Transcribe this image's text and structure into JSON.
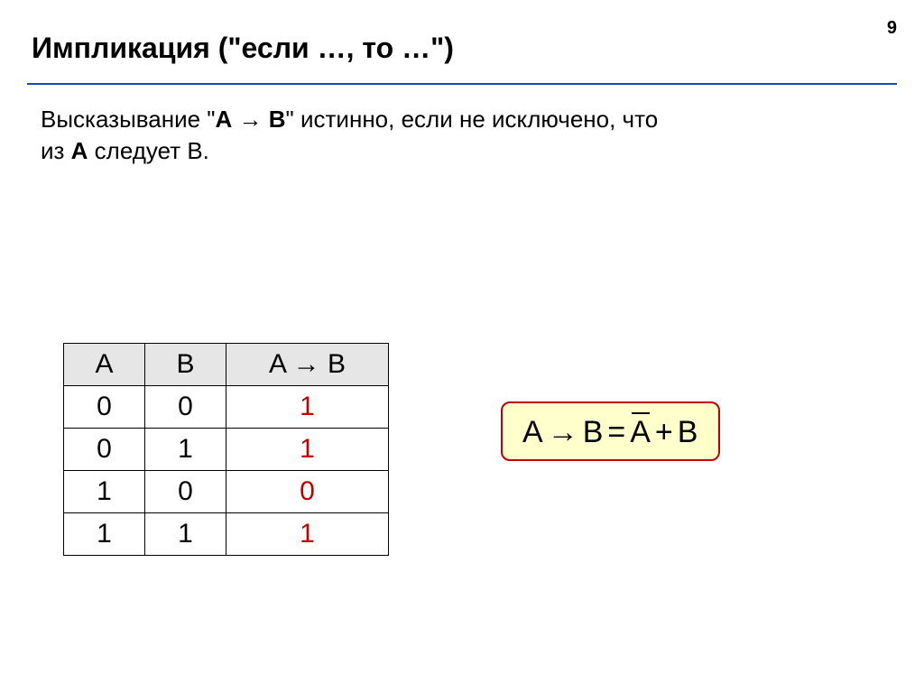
{
  "page_number": "9",
  "title": "Импликация (\"если …, то …\")",
  "statement_parts": {
    "t1": "Высказывание \"",
    "t2": "A",
    "t3": " → ",
    "t4": "B",
    "t5": "\" истинно, если не исключено, что из ",
    "t6": "A",
    "t7": " следует B."
  },
  "table": {
    "headers": {
      "a": "A",
      "b": "B",
      "ab_left": "A",
      "ab_arrow": " → ",
      "ab_right": "B"
    },
    "rows": [
      {
        "a": "0",
        "b": "0",
        "res": "1"
      },
      {
        "a": "0",
        "b": "1",
        "res": "1"
      },
      {
        "a": "1",
        "b": "0",
        "res": "0"
      },
      {
        "a": "1",
        "b": "1",
        "res": "1"
      }
    ]
  },
  "formula": {
    "p1": "A",
    "arrow": "→",
    "p2": "B",
    "eq": "=",
    "p3": "A",
    "plus": "+",
    "p4": "B"
  },
  "colors": {
    "divider": "#1a4ba8",
    "result": "#c00000",
    "formula_bg": "#ffffcc",
    "formula_border": "#c00000",
    "header_bg": "#e6e6e6"
  }
}
